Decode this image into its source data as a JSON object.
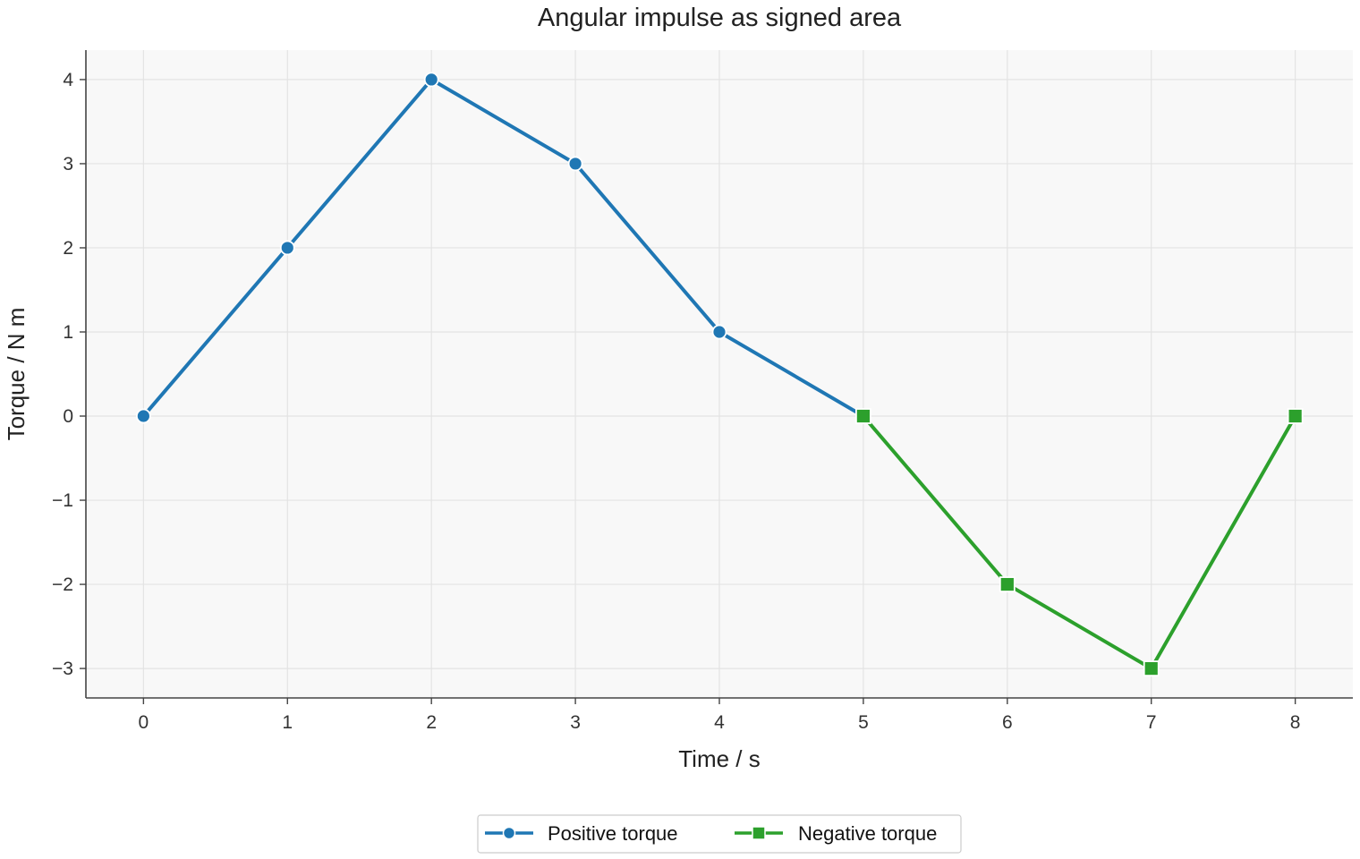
{
  "chart_data": {
    "type": "line",
    "title": "Angular impulse as signed area",
    "xlabel": "Time / s",
    "ylabel": "Torque / N m",
    "xlim": [
      -0.4,
      8.4
    ],
    "ylim": [
      -3.35,
      4.35
    ],
    "x_ticks": [
      0,
      1,
      2,
      3,
      4,
      5,
      6,
      7,
      8
    ],
    "x_tick_labels": [
      "0",
      "1",
      "2",
      "3",
      "4",
      "5",
      "6",
      "7",
      "8"
    ],
    "y_ticks": [
      -3,
      -2,
      -1,
      0,
      1,
      2,
      3,
      4
    ],
    "y_tick_labels": [
      "−3",
      "−2",
      "−1",
      "0",
      "1",
      "2",
      "3",
      "4"
    ],
    "grid": true,
    "legend_position": "bottom-center",
    "series": [
      {
        "name": "Positive torque",
        "color": "#1f77b4",
        "marker": "circle",
        "x": [
          0,
          1,
          2,
          3,
          4,
          5
        ],
        "y": [
          0,
          2,
          4,
          3,
          1,
          0
        ]
      },
      {
        "name": "Negative torque",
        "color": "#2ca02c",
        "marker": "square",
        "x": [
          5,
          6,
          7,
          8
        ],
        "y": [
          0,
          -2,
          -3,
          0
        ]
      }
    ]
  }
}
